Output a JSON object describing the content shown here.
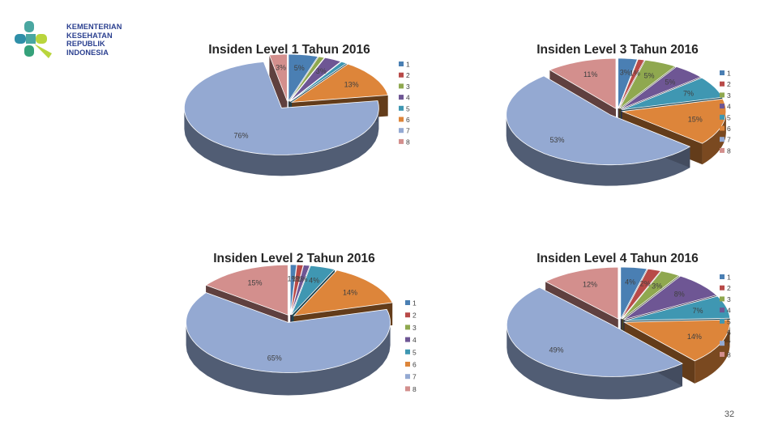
{
  "logo": {
    "lines": [
      "KEMENTERIAN",
      "KESEHATAN",
      "REPUBLIK",
      "INDONESIA"
    ]
  },
  "slide_number": "32",
  "colors": {
    "1": "#4a7fb3",
    "2": "#b84a48",
    "3": "#8fa84f",
    "4": "#6e5694",
    "5": "#3f97b2",
    "6": "#dd853a",
    "7": "#94a9d2",
    "8": "#d38f8d"
  },
  "chart_data": [
    {
      "type": "pie",
      "title": "Insiden Level 1 Tahun 2016",
      "categories": [
        "1",
        "2",
        "3",
        "4",
        "5",
        "6",
        "7",
        "8"
      ],
      "values": [
        5,
        0,
        1,
        3,
        1,
        13,
        76,
        3
      ],
      "labels": [
        "5%",
        "",
        "",
        "3%",
        "",
        "13%",
        "76%",
        "3%"
      ],
      "legend": "right"
    },
    {
      "type": "pie",
      "title": "Insiden Level 3 Tahun 2016",
      "categories": [
        "1",
        "2",
        "3",
        "4",
        "5",
        "6",
        "7",
        "8"
      ],
      "values": [
        3,
        1,
        5,
        5,
        7,
        15,
        53,
        11
      ],
      "labels": [
        "3%",
        "1%",
        "5%",
        "5%",
        "7%",
        "15%",
        "53%",
        "11%"
      ],
      "legend": "right"
    },
    {
      "type": "pie",
      "title": "Insiden Level 2 Tahun 2016",
      "categories": [
        "1",
        "2",
        "3",
        "4",
        "5",
        "6",
        "7",
        "8"
      ],
      "values": [
        1,
        1,
        0,
        1,
        4,
        14,
        65,
        15
      ],
      "labels": [
        "1%",
        "1%",
        "",
        "1%",
        "4%",
        "14%",
        "65%",
        "15%"
      ],
      "legend": "bottom-right"
    },
    {
      "type": "pie",
      "title": "Insiden Level 4 Tahun 2016",
      "categories": [
        "1",
        "2",
        "3",
        "4",
        "5",
        "6",
        "7",
        "8"
      ],
      "values": [
        4,
        2,
        3,
        8,
        7,
        14,
        49,
        12
      ],
      "labels": [
        "4%",
        "2%",
        "3%",
        "8%",
        "7%",
        "14%",
        "49%",
        "12%"
      ],
      "legend": "right"
    }
  ]
}
